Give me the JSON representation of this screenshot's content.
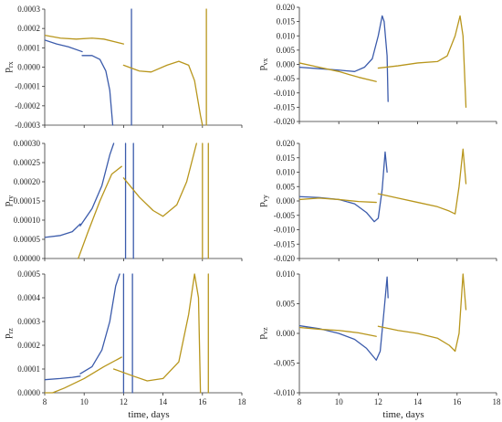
{
  "colors": {
    "series_a": "#3b5bab",
    "series_b": "#b8961c",
    "axis": "#333333"
  },
  "chart_data": [
    {
      "id": "px",
      "type": "line",
      "ylabel": "p",
      "ylabel_sub": "rx",
      "xlabel": "",
      "xlim": [
        8,
        18
      ],
      "ylim": [
        -0.0003,
        0.0003
      ],
      "xticks": [
        "8",
        "10",
        "12",
        "14",
        "16",
        "18"
      ],
      "yticks": [
        "-0.0003",
        "-0.0002",
        "-0.0001",
        "0.0000",
        "0.0001",
        "0.0002",
        "0.0003"
      ],
      "show_xticklabels": false,
      "series": [
        {
          "color": "series_a",
          "segments": [
            [
              [
                8,
                0.00014
              ],
              [
                8.6,
                0.00012
              ],
              [
                9.2,
                0.000105
              ],
              [
                9.9,
                8e-05
              ]
            ],
            [
              [
                9.9,
                6e-05
              ],
              [
                10.4,
                6e-05
              ],
              [
                10.8,
                4e-05
              ],
              [
                11.1,
                -2e-05
              ],
              [
                11.3,
                -0.00012
              ],
              [
                11.45,
                -0.0003
              ]
            ],
            [
              [
                12.4,
                -0.0003
              ],
              [
                12.4,
                0.0003
              ]
            ]
          ]
        },
        {
          "color": "series_b",
          "segments": [
            [
              [
                8,
                0.000165
              ],
              [
                8.8,
                0.00015
              ],
              [
                9.6,
                0.000145
              ],
              [
                10.4,
                0.00015
              ],
              [
                11,
                0.000145
              ],
              [
                11.6,
                0.00013
              ],
              [
                12,
                0.00012
              ]
            ],
            [
              [
                12,
                1e-05
              ],
              [
                12.8,
                -2e-05
              ],
              [
                13.4,
                -2.5e-05
              ],
              [
                14.2,
                1e-05
              ],
              [
                14.8,
                3e-05
              ],
              [
                15.3,
                1e-05
              ],
              [
                15.6,
                -7e-05
              ],
              [
                15.9,
                -0.00025
              ],
              [
                16,
                -0.0003
              ]
            ],
            [
              [
                16.2,
                -0.0003
              ],
              [
                16.2,
                0.0003
              ]
            ]
          ]
        }
      ]
    },
    {
      "id": "vx",
      "type": "line",
      "ylabel": "p",
      "ylabel_sub": "vx",
      "xlabel": "",
      "xlim": [
        8,
        18
      ],
      "ylim": [
        -0.02,
        0.02
      ],
      "xticks": [
        "8",
        "10",
        "12",
        "14",
        "16",
        "18"
      ],
      "yticks": [
        "-0.020",
        "-0.015",
        "-0.010",
        "-0.005",
        "0.000",
        "0.005",
        "0.010",
        "0.015",
        "0.020"
      ],
      "show_xticklabels": false,
      "series": [
        {
          "color": "series_a",
          "segments": [
            [
              [
                8,
                -0.001
              ],
              [
                9,
                -0.0015
              ],
              [
                10,
                -0.002
              ],
              [
                10.8,
                -0.0025
              ],
              [
                11.3,
                -0.001
              ],
              [
                11.7,
                0.002
              ],
              [
                12,
                0.01
              ],
              [
                12.2,
                0.017
              ],
              [
                12.3,
                0.015
              ],
              [
                12.45,
                0.003
              ],
              [
                12.5,
                -0.013
              ]
            ]
          ]
        },
        {
          "color": "series_b",
          "segments": [
            [
              [
                8,
                0.0005
              ],
              [
                9,
                -0.001
              ],
              [
                10,
                -0.0025
              ],
              [
                11,
                -0.0045
              ],
              [
                11.9,
                -0.006
              ]
            ],
            [
              [
                12,
                -0.0013
              ],
              [
                13,
                -0.0005
              ],
              [
                14,
                0.0005
              ],
              [
                15,
                0.001
              ],
              [
                15.5,
                0.003
              ],
              [
                15.9,
                0.01
              ],
              [
                16.15,
                0.017
              ],
              [
                16.3,
                0.01
              ],
              [
                16.45,
                -0.015
              ]
            ]
          ]
        }
      ]
    },
    {
      "id": "py",
      "type": "line",
      "ylabel": "p",
      "ylabel_sub": "ry",
      "xlabel": "",
      "xlim": [
        8,
        18
      ],
      "ylim": [
        0,
        0.0003
      ],
      "xticks": [
        "8",
        "10",
        "12",
        "14",
        "16",
        "18"
      ],
      "yticks": [
        "0.00000",
        "0.00005",
        "0.00010",
        "0.00015",
        "0.00020",
        "0.00025",
        "0.00030"
      ],
      "show_xticklabels": false,
      "series": [
        {
          "color": "series_a",
          "segments": [
            [
              [
                8,
                5.5e-05
              ],
              [
                8.8,
                6e-05
              ],
              [
                9.4,
                7e-05
              ],
              [
                9.8,
                9e-05
              ]
            ],
            [
              [
                9.8,
                8.5e-05
              ],
              [
                10.4,
                0.00013
              ],
              [
                10.9,
                0.00019
              ],
              [
                11.3,
                0.00027
              ],
              [
                11.5,
                0.0003
              ]
            ],
            [
              [
                12.1,
                0.0003
              ],
              [
                12.1,
                0
              ]
            ],
            [
              [
                12.5,
                0
              ],
              [
                12.5,
                0.0003
              ]
            ]
          ]
        },
        {
          "color": "series_b",
          "segments": [
            [
              [
                9.7,
                0
              ],
              [
                10.2,
                7e-05
              ],
              [
                10.8,
                0.00015
              ],
              [
                11.4,
                0.00022
              ],
              [
                11.9,
                0.00024
              ]
            ],
            [
              [
                12,
                0.00021
              ],
              [
                12.8,
                0.00016
              ],
              [
                13.5,
                0.000125
              ],
              [
                14,
                0.00011
              ],
              [
                14.7,
                0.00014
              ],
              [
                15.2,
                0.0002
              ],
              [
                15.6,
                0.00028
              ],
              [
                15.7,
                0.0003
              ]
            ],
            [
              [
                16.0,
                0.0003
              ],
              [
                16.0,
                0
              ]
            ],
            [
              [
                16.3,
                0
              ],
              [
                16.3,
                0.0003
              ]
            ]
          ]
        }
      ]
    },
    {
      "id": "vy",
      "type": "line",
      "ylabel": "p",
      "ylabel_sub": "vy",
      "xlabel": "",
      "xlim": [
        8,
        18
      ],
      "ylim": [
        -0.02,
        0.02
      ],
      "xticks": [
        "8",
        "10",
        "12",
        "14",
        "16",
        "18"
      ],
      "yticks": [
        "-0.020",
        "-0.015",
        "-0.010",
        "-0.005",
        "0.000",
        "0.005",
        "0.010",
        "0.015",
        "0.020"
      ],
      "show_xticklabels": false,
      "series": [
        {
          "color": "series_a",
          "segments": [
            [
              [
                8,
                0.0015
              ],
              [
                9,
                0.0012
              ],
              [
                10,
                0.0005
              ],
              [
                10.8,
                -0.001
              ],
              [
                11.4,
                -0.004
              ],
              [
                11.8,
                -0.0072
              ],
              [
                12,
                -0.006
              ],
              [
                12.2,
                0.004
              ],
              [
                12.35,
                0.017
              ],
              [
                12.45,
                0.01
              ]
            ]
          ]
        },
        {
          "color": "series_b",
          "segments": [
            [
              [
                8,
                0.0005
              ],
              [
                9,
                0.001
              ],
              [
                10,
                0.0005
              ],
              [
                11,
                -0.0002
              ],
              [
                11.9,
                -0.0005
              ]
            ],
            [
              [
                12,
                0.0025
              ],
              [
                13,
                0.001
              ],
              [
                14,
                -0.0005
              ],
              [
                15,
                -0.002
              ],
              [
                15.6,
                -0.0035
              ],
              [
                15.9,
                -0.0045
              ],
              [
                16.1,
                0.005
              ],
              [
                16.3,
                0.018
              ],
              [
                16.45,
                0.006
              ]
            ]
          ]
        }
      ]
    },
    {
      "id": "pz",
      "type": "line",
      "ylabel": "p",
      "ylabel_sub": "rz",
      "xlabel": "time, days",
      "xlim": [
        8,
        18
      ],
      "ylim": [
        0,
        0.0005
      ],
      "xticks": [
        "8",
        "10",
        "12",
        "14",
        "16",
        "18"
      ],
      "yticks": [
        "0.0000",
        "0.0001",
        "0.0002",
        "0.0003",
        "0.0004",
        "0.0005"
      ],
      "show_xticklabels": true,
      "series": [
        {
          "color": "series_a",
          "segments": [
            [
              [
                8,
                5.5e-05
              ],
              [
                8.8,
                6e-05
              ],
              [
                9.4,
                6.5e-05
              ],
              [
                9.8,
                7e-05
              ]
            ],
            [
              [
                9.8,
                8e-05
              ],
              [
                10.4,
                0.00011
              ],
              [
                10.9,
                0.00018
              ],
              [
                11.3,
                0.0003
              ],
              [
                11.6,
                0.00045
              ],
              [
                11.8,
                0.0005
              ]
            ],
            [
              [
                12.0,
                0.0005
              ],
              [
                12.0,
                0
              ]
            ],
            [
              [
                12.45,
                0
              ],
              [
                12.45,
                0.0005
              ]
            ]
          ]
        },
        {
          "color": "series_b",
          "segments": [
            [
              [
                8,
                0
              ],
              [
                8.4,
                0
              ],
              [
                9,
                2e-05
              ],
              [
                10,
                6e-05
              ],
              [
                11,
                0.00011
              ],
              [
                11.9,
                0.00015
              ]
            ],
            [
              [
                11.5,
                0.0001
              ],
              [
                12.5,
                7e-05
              ],
              [
                13.2,
                5e-05
              ],
              [
                14,
                6e-05
              ],
              [
                14.8,
                0.00013
              ],
              [
                15.3,
                0.00033
              ],
              [
                15.6,
                0.0005
              ],
              [
                15.8,
                0.0004
              ],
              [
                15.9,
                0
              ]
            ],
            [
              [
                16.3,
                0
              ],
              [
                16.3,
                0.0005
              ]
            ]
          ]
        }
      ]
    },
    {
      "id": "vz",
      "type": "line",
      "ylabel": "p",
      "ylabel_sub": "vz",
      "xlabel": "time, days",
      "xlim": [
        8,
        18
      ],
      "ylim": [
        -0.01,
        0.01
      ],
      "xticks": [
        "8",
        "10",
        "12",
        "14",
        "16",
        "18"
      ],
      "yticks": [
        "-0.010",
        "-0.005",
        "0.000",
        "0.005",
        "0.010"
      ],
      "show_xticklabels": true,
      "series": [
        {
          "color": "series_a",
          "segments": [
            [
              [
                8,
                0.0013
              ],
              [
                9,
                0.0008
              ],
              [
                10,
                0.0
              ],
              [
                10.8,
                -0.001
              ],
              [
                11.4,
                -0.0025
              ],
              [
                11.9,
                -0.0045
              ],
              [
                12.1,
                -0.003
              ],
              [
                12.3,
                0.004
              ],
              [
                12.45,
                0.0095
              ],
              [
                12.5,
                0.006
              ]
            ]
          ]
        },
        {
          "color": "series_b",
          "segments": [
            [
              [
                8,
                0.001
              ],
              [
                9,
                0.0007
              ],
              [
                10,
                0.0005
              ],
              [
                11,
                0.0001
              ],
              [
                11.9,
                -0.0005
              ]
            ],
            [
              [
                12,
                0.0012
              ],
              [
                13,
                0.0005
              ],
              [
                14,
                0.0
              ],
              [
                15,
                -0.0008
              ],
              [
                15.6,
                -0.002
              ],
              [
                15.9,
                -0.003
              ],
              [
                16.1,
                0.0
              ],
              [
                16.3,
                0.01
              ],
              [
                16.45,
                0.004
              ]
            ]
          ]
        }
      ]
    }
  ]
}
